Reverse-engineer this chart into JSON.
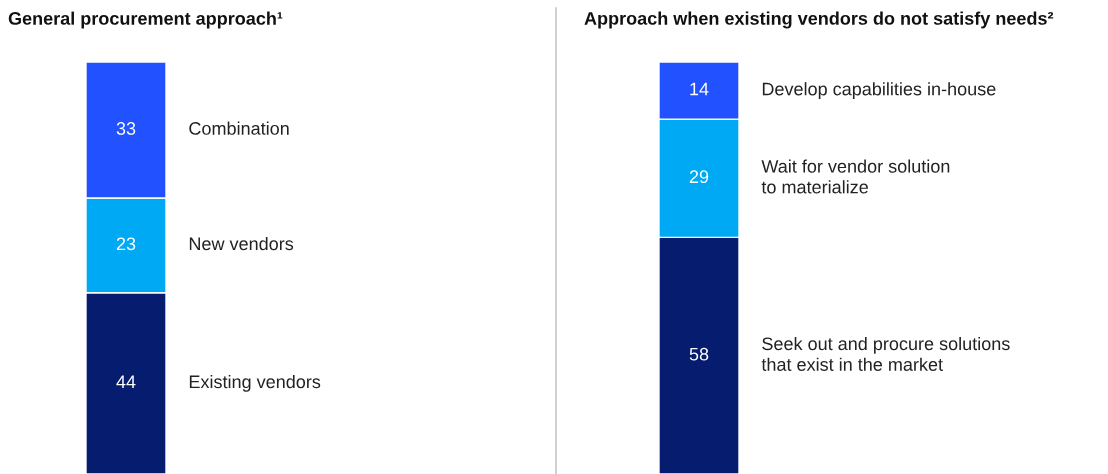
{
  "chart_data": [
    {
      "type": "bar",
      "title": "General procurement approach¹",
      "categories": [
        null
      ],
      "stacked": true,
      "data_labels": true,
      "tick_labels": false,
      "series": [
        {
          "name": "Existing vendors",
          "color": "#051c6f",
          "values": [
            44
          ]
        },
        {
          "name": "New vendors",
          "color": "#00a9f4",
          "values": [
            23
          ]
        },
        {
          "name": "Combination",
          "color": "#2251ff",
          "values": [
            33
          ]
        }
      ]
    },
    {
      "type": "bar",
      "title": "Approach when existing vendors do not satisfy needs²",
      "categories": [
        null
      ],
      "stacked": true,
      "data_labels": true,
      "tick_labels": false,
      "series": [
        {
          "name": "Seek out and procure solutions\nthat exist in the market",
          "color": "#051c6f",
          "values": [
            58
          ]
        },
        {
          "name": "Wait for vendor solution\nto materialize",
          "color": "#00a9f4",
          "values": [
            29
          ]
        },
        {
          "name": "Develop capabilities in-house",
          "color": "#2251ff",
          "values": [
            14
          ]
        }
      ]
    }
  ]
}
